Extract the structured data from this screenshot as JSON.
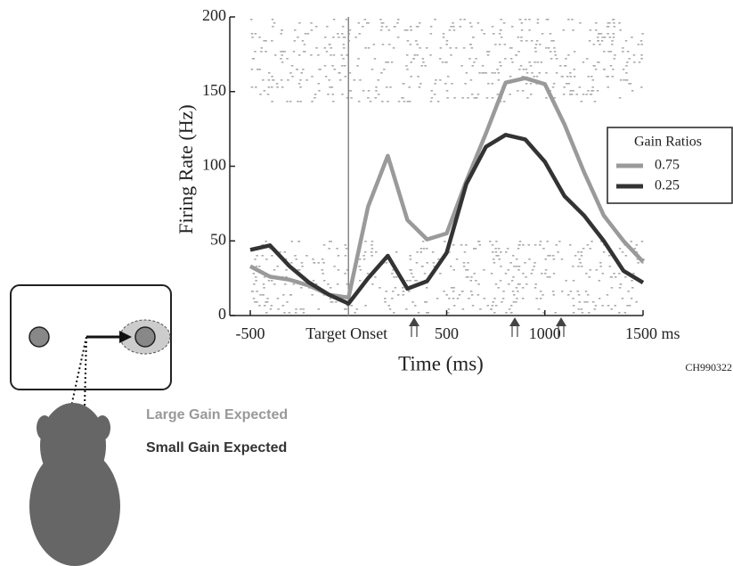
{
  "chart_data": {
    "type": "line",
    "x_label": "Time (ms)",
    "y_label": "Firing Rate (Hz)",
    "x": [
      -500,
      -400,
      -300,
      -200,
      -100,
      0,
      100,
      200,
      300,
      400,
      500,
      600,
      700,
      800,
      900,
      1000,
      1100,
      1200,
      1300,
      1400,
      1500
    ],
    "series": [
      {
        "name": "0.75",
        "color": "#9a9a9a",
        "values": [
          33,
          26,
          24,
          20,
          14,
          12,
          73,
          107,
          64,
          51,
          55,
          90,
          122,
          156,
          159,
          155,
          128,
          96,
          67,
          50,
          36
        ]
      },
      {
        "name": "0.25",
        "color": "#333333",
        "values": [
          44,
          47,
          33,
          22,
          14,
          8,
          25,
          40,
          18,
          23,
          42,
          88,
          113,
          121,
          118,
          103,
          80,
          67,
          50,
          30,
          22
        ]
      }
    ],
    "xlim": [
      -500,
      1500
    ],
    "xticks": [
      -500,
      {
        "value": 0,
        "label": "Target Onset"
      },
      500,
      1000,
      {
        "value": 1500,
        "label": "1500 ms"
      }
    ],
    "ylim": [
      0,
      200
    ],
    "yticks": [
      0,
      50,
      100,
      150,
      200
    ],
    "legend_title": "Gain Ratios",
    "legend": "right",
    "annotations": [
      "CH990322",
      "Large Gain Expected",
      "Small Gain Expected"
    ]
  }
}
